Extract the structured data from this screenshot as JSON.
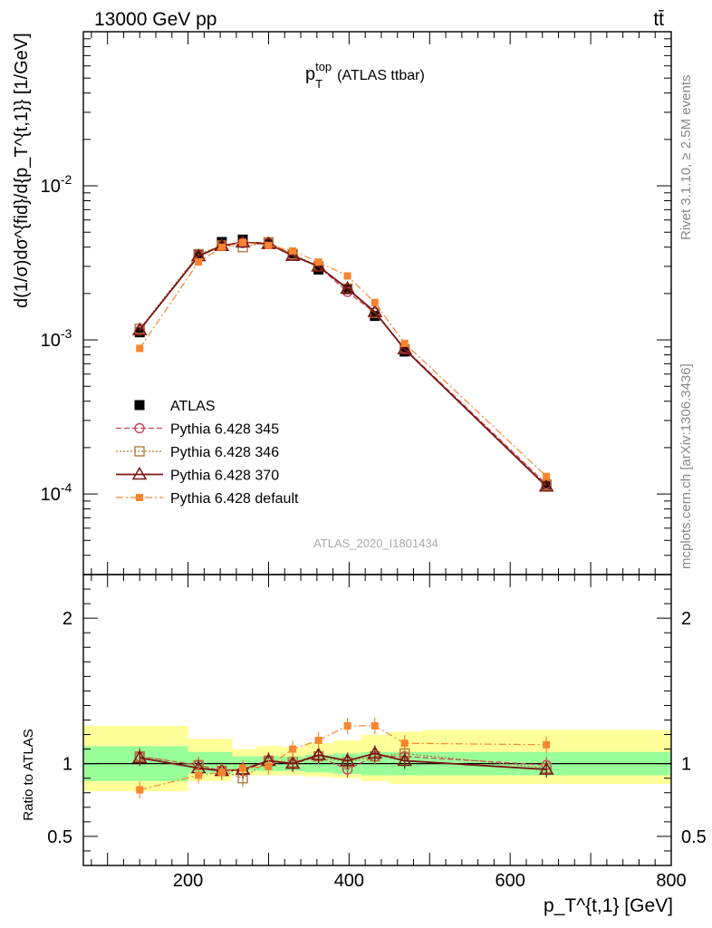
{
  "header": {
    "energy": "13000 GeV pp",
    "process": "tt̄"
  },
  "side_labels": {
    "rivet": "Rivet 3.1.10, ≥ 2.5M events",
    "site": "mcplots.cern.ch [arXiv:1306.3436]"
  },
  "watermark": "ATLAS_2020_I1801434",
  "chart_data": [
    {
      "type": "scatter",
      "title": "p_T^top (ATLAS ttbar)",
      "title_parts": {
        "main": "p",
        "sup": "top",
        "sub": "T",
        "rest": "(ATLAS ttbar)"
      },
      "xlabel": "p_T^{t,1} [GeV]",
      "ylabel": "d(1/σ)dσ^{fid}/d{p_T^{t,1}} [1/GeV]",
      "xlim": [
        70,
        800
      ],
      "ylim": [
        3e-05,
        0.1
      ],
      "yscale": "log",
      "x_tick_labels": [
        "200",
        "400",
        "600",
        "800"
      ],
      "y_tick_labels": [
        "10^-4",
        "10^-3",
        "10^-2"
      ],
      "x": [
        140,
        213,
        242,
        268,
        300,
        330,
        362,
        398,
        432,
        469,
        645
      ],
      "series": [
        {
          "name": "ATLAS",
          "color": "#000000",
          "values": [
            0.00112,
            0.0036,
            0.00432,
            0.00448,
            0.0042,
            0.00355,
            0.00286,
            0.00213,
            0.00143,
            0.00084,
            0.000115
          ]
        },
        {
          "name": "Pythia 6.428 345",
          "color": "#c8435a",
          "values": [
            0.00115,
            0.00355,
            0.0041,
            0.00425,
            0.0043,
            0.00355,
            0.003,
            0.00205,
            0.0015,
            0.00088,
            0.000116
          ]
        },
        {
          "name": "Pythia 6.428 346",
          "color": "#b07b3a",
          "values": [
            0.00118,
            0.0036,
            0.0041,
            0.004,
            0.0043,
            0.0036,
            0.003,
            0.00215,
            0.0015,
            0.00087,
            0.000114
          ]
        },
        {
          "name": "Pythia 6.428 370",
          "color": "#7a1414",
          "values": [
            0.00116,
            0.0035,
            0.00408,
            0.0043,
            0.0042,
            0.00352,
            0.003,
            0.00215,
            0.00152,
            0.00087,
            0.000112
          ]
        },
        {
          "name": "Pythia 6.428 default",
          "color": "#f7852f",
          "values": [
            0.00088,
            0.0032,
            0.004,
            0.0043,
            0.0041,
            0.00378,
            0.0032,
            0.0026,
            0.00175,
            0.00095,
            0.00013
          ]
        }
      ]
    },
    {
      "type": "scatter",
      "ylabel": "Ratio to ATLAS",
      "xlim": [
        70,
        800
      ],
      "ylim": [
        0.3,
        2.3
      ],
      "x_tick_labels": [
        "200",
        "400",
        "600",
        "800"
      ],
      "y_tick_labels": [
        "0.5",
        "1",
        "2"
      ],
      "bands": {
        "bin_edges": [
          70,
          200,
          255,
          285,
          320,
          345,
          380,
          415,
          450,
          490,
          800
        ],
        "inner": [
          [
            0.88,
            1.12
          ],
          [
            0.93,
            1.08
          ],
          [
            0.95,
            1.05
          ],
          [
            0.95,
            1.05
          ],
          [
            0.95,
            1.05
          ],
          [
            0.94,
            1.06
          ],
          [
            0.93,
            1.07
          ],
          [
            0.92,
            1.08
          ],
          [
            0.92,
            1.08
          ],
          [
            0.92,
            1.08
          ]
        ],
        "outer": [
          [
            0.81,
            1.26
          ],
          [
            0.88,
            1.17
          ],
          [
            0.92,
            1.1
          ],
          [
            0.92,
            1.12
          ],
          [
            0.92,
            1.11
          ],
          [
            0.91,
            1.14
          ],
          [
            0.9,
            1.16
          ],
          [
            0.88,
            1.2
          ],
          [
            0.86,
            1.22
          ],
          [
            0.86,
            1.23
          ]
        ]
      },
      "x": [
        140,
        213,
        242,
        268,
        300,
        330,
        362,
        398,
        432,
        469,
        645
      ],
      "series": [
        {
          "name": "Pythia 6.428 345",
          "values": [
            1.05,
            0.99,
            0.95,
            0.95,
            1.02,
            1.0,
            1.05,
            0.96,
            1.05,
            1.05,
            0.99
          ]
        },
        {
          "name": "Pythia 6.428 346",
          "values": [
            1.05,
            0.99,
            0.95,
            0.9,
            1.02,
            1.01,
            1.05,
            1.01,
            1.05,
            1.07,
            0.97
          ]
        },
        {
          "name": "Pythia 6.428 370",
          "values": [
            1.04,
            0.97,
            0.95,
            0.96,
            1.02,
            1.0,
            1.06,
            1.02,
            1.07,
            1.02,
            0.96
          ]
        },
        {
          "name": "Pythia 6.428 default",
          "values": [
            0.82,
            0.92,
            0.94,
            0.97,
            0.98,
            1.1,
            1.16,
            1.26,
            1.26,
            1.14,
            1.13
          ]
        }
      ]
    }
  ]
}
